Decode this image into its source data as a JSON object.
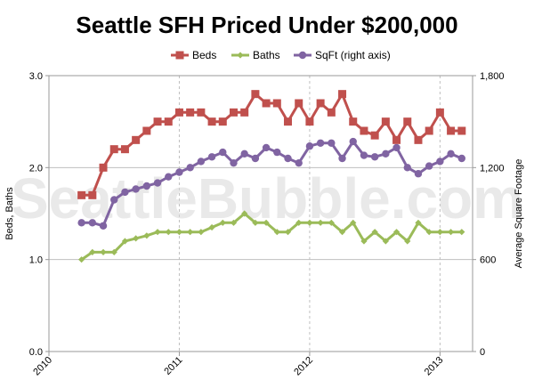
{
  "chart_data": {
    "type": "line",
    "title": "Seattle SFH Priced Under $200,000",
    "watermark": "SeattleBubble.com",
    "ylabel_left": "Beds, Baths",
    "ylabel_right": "Average Square Footage",
    "x_ticks": [
      "2010",
      "2011",
      "2012",
      "2013"
    ],
    "y_left_ticks": [
      "0.0",
      "1.0",
      "2.0",
      "3.0"
    ],
    "y_right_ticks": [
      "0",
      "600",
      "1,200",
      "1,800"
    ],
    "ylim_left": [
      0,
      3
    ],
    "ylim_right": [
      0,
      1800
    ],
    "grid": "vertical year lines and horizontal lines at left-axis ticks",
    "legend_position": "top",
    "x": [
      "2010-04",
      "2010-05",
      "2010-06",
      "2010-07",
      "2010-08",
      "2010-09",
      "2010-10",
      "2010-11",
      "2010-12",
      "2011-01",
      "2011-02",
      "2011-03",
      "2011-04",
      "2011-05",
      "2011-06",
      "2011-07",
      "2011-08",
      "2011-09",
      "2011-10",
      "2011-11",
      "2011-12",
      "2012-01",
      "2012-02",
      "2012-03",
      "2012-04",
      "2012-05",
      "2012-06",
      "2012-07",
      "2012-08",
      "2012-09",
      "2012-10",
      "2012-11",
      "2012-12",
      "2013-01",
      "2013-02",
      "2013-03"
    ],
    "series": [
      {
        "name": "Beds",
        "axis": "left",
        "color": "#c0504d",
        "marker": "square",
        "values": [
          1.7,
          1.7,
          2.0,
          2.2,
          2.2,
          2.3,
          2.4,
          2.5,
          2.5,
          2.6,
          2.6,
          2.6,
          2.5,
          2.5,
          2.6,
          2.6,
          2.8,
          2.7,
          2.7,
          2.5,
          2.7,
          2.5,
          2.7,
          2.6,
          2.8,
          2.5,
          2.4,
          2.35,
          2.5,
          2.3,
          2.5,
          2.3,
          2.4,
          2.6,
          2.4,
          2.4
        ]
      },
      {
        "name": "Baths",
        "axis": "left",
        "color": "#9bbb59",
        "marker": "diamond",
        "values": [
          1.0,
          1.08,
          1.08,
          1.08,
          1.2,
          1.23,
          1.26,
          1.3,
          1.3,
          1.3,
          1.3,
          1.3,
          1.35,
          1.4,
          1.4,
          1.5,
          1.4,
          1.4,
          1.3,
          1.3,
          1.4,
          1.4,
          1.4,
          1.4,
          1.3,
          1.4,
          1.2,
          1.3,
          1.2,
          1.3,
          1.2,
          1.4,
          1.3,
          1.3,
          1.3,
          1.3
        ]
      },
      {
        "name": "SqFt (right axis)",
        "axis": "right",
        "color": "#8064a2",
        "marker": "circle",
        "values": [
          840,
          840,
          820,
          990,
          1040,
          1060,
          1080,
          1100,
          1140,
          1170,
          1200,
          1240,
          1270,
          1300,
          1230,
          1290,
          1260,
          1330,
          1300,
          1260,
          1230,
          1340,
          1360,
          1360,
          1260,
          1370,
          1280,
          1270,
          1290,
          1330,
          1200,
          1160,
          1210,
          1240,
          1290,
          1260
        ]
      }
    ]
  }
}
